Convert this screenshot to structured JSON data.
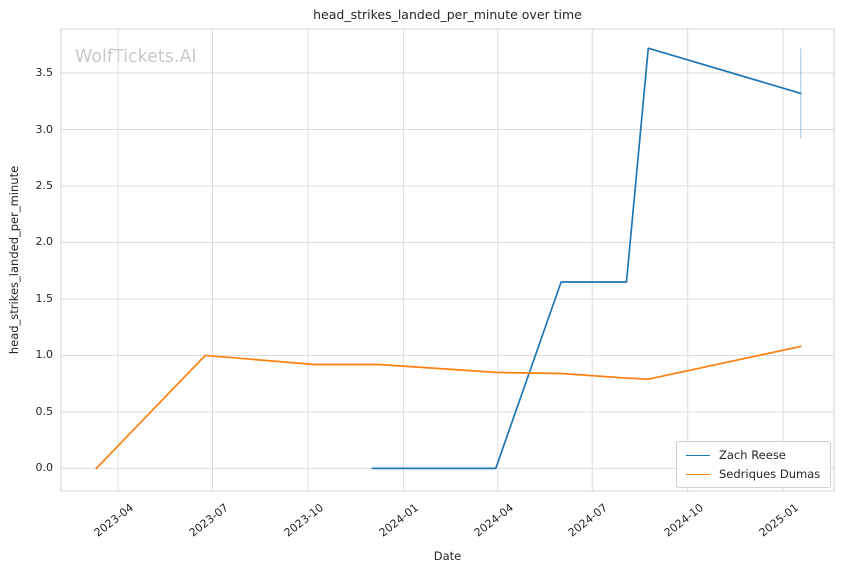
{
  "watermark": "WolfTickets.AI",
  "colors": {
    "grid": "#dcdcdc",
    "frame": "#d4d4d4",
    "text": "#262626",
    "watermark": "#c9c9c9",
    "series_blue": "#1f77b4",
    "series_orange": "#ff7f0e"
  },
  "chart_data": {
    "type": "line",
    "title": "head_strikes_landed_per_minute over time",
    "xlabel": "Date",
    "ylabel": "head_strikes_landed_per_minute",
    "grid": true,
    "legend_position": "lower right",
    "x_ticks": [
      "2023-04",
      "2023-07",
      "2023-10",
      "2024-01",
      "2024-04",
      "2024-07",
      "2024-10",
      "2025-01"
    ],
    "y_ticks": [
      "0.0",
      "0.5",
      "1.0",
      "1.5",
      "2.0",
      "2.5",
      "3.0",
      "3.5"
    ],
    "x_range": [
      "2023-02-05",
      "2025-02-19"
    ],
    "y_range": [
      -0.2,
      3.89
    ],
    "series": [
      {
        "name": "Zach Reese",
        "color": "#1f77b4",
        "points": [
          [
            "2023-12-02",
            0.0
          ],
          [
            "2024-03-30",
            0.0
          ],
          [
            "2024-06-01",
            1.65
          ],
          [
            "2024-08-03",
            1.65
          ],
          [
            "2024-08-24",
            3.72
          ],
          [
            "2025-01-18",
            3.32
          ]
        ],
        "error_bar": {
          "x": "2025-01-18",
          "low": 2.92,
          "high": 3.72
        }
      },
      {
        "name": "Sedriques Dumas",
        "color": "#ff7f0e",
        "points": [
          [
            "2023-03-11",
            0.0
          ],
          [
            "2023-06-24",
            1.0
          ],
          [
            "2023-10-07",
            0.92
          ],
          [
            "2023-12-09",
            0.92
          ],
          [
            "2024-03-30",
            0.85
          ],
          [
            "2024-06-01",
            0.84
          ],
          [
            "2024-08-03",
            0.8
          ],
          [
            "2024-08-24",
            0.79
          ],
          [
            "2025-01-18",
            1.08
          ]
        ]
      }
    ]
  }
}
